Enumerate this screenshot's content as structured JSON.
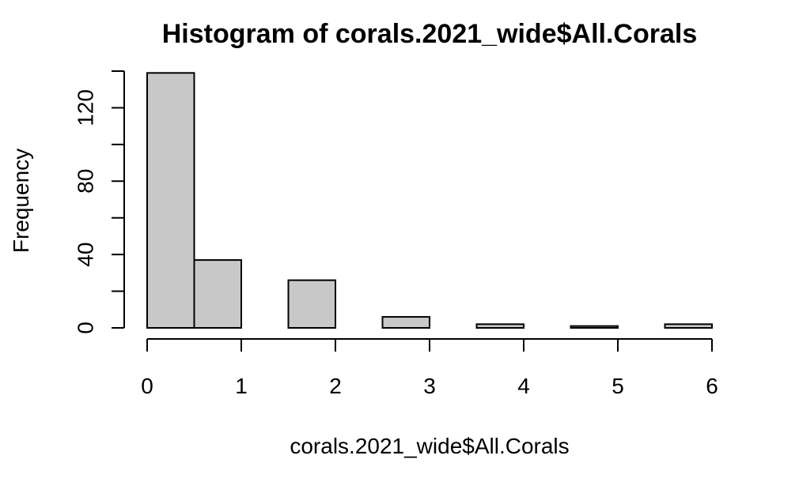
{
  "chart_data": {
    "type": "bar",
    "title": "Histogram of corals.2021_wide$All.Corals",
    "xlabel": "corals.2021_wide$All.Corals",
    "ylabel": "Frequency",
    "bins": [
      {
        "x0": 0.0,
        "x1": 0.5,
        "count": 139
      },
      {
        "x0": 0.5,
        "x1": 1.0,
        "count": 37
      },
      {
        "x0": 1.0,
        "x1": 1.5,
        "count": 0
      },
      {
        "x0": 1.5,
        "x1": 2.0,
        "count": 26
      },
      {
        "x0": 2.0,
        "x1": 2.5,
        "count": 0
      },
      {
        "x0": 2.5,
        "x1": 3.0,
        "count": 6
      },
      {
        "x0": 3.0,
        "x1": 3.5,
        "count": 0
      },
      {
        "x0": 3.5,
        "x1": 4.0,
        "count": 2
      },
      {
        "x0": 4.0,
        "x1": 4.5,
        "count": 0
      },
      {
        "x0": 4.5,
        "x1": 5.0,
        "count": 1
      },
      {
        "x0": 5.0,
        "x1": 5.5,
        "count": 0
      },
      {
        "x0": 5.5,
        "x1": 6.0,
        "count": 2
      }
    ],
    "xlim": [
      0,
      6
    ],
    "ylim": [
      0,
      140
    ],
    "x_ticks": [
      0,
      1,
      2,
      3,
      4,
      5,
      6
    ],
    "y_ticks": [
      0,
      20,
      40,
      60,
      80,
      100,
      120,
      140
    ],
    "y_tick_labels": [
      {
        "value": 0,
        "label": "0"
      },
      {
        "value": 40,
        "label": "40"
      },
      {
        "value": 80,
        "label": "80"
      },
      {
        "value": 120,
        "label": "120"
      }
    ],
    "bar_color": "#c8c8c8",
    "grid": false,
    "legend": "none"
  }
}
